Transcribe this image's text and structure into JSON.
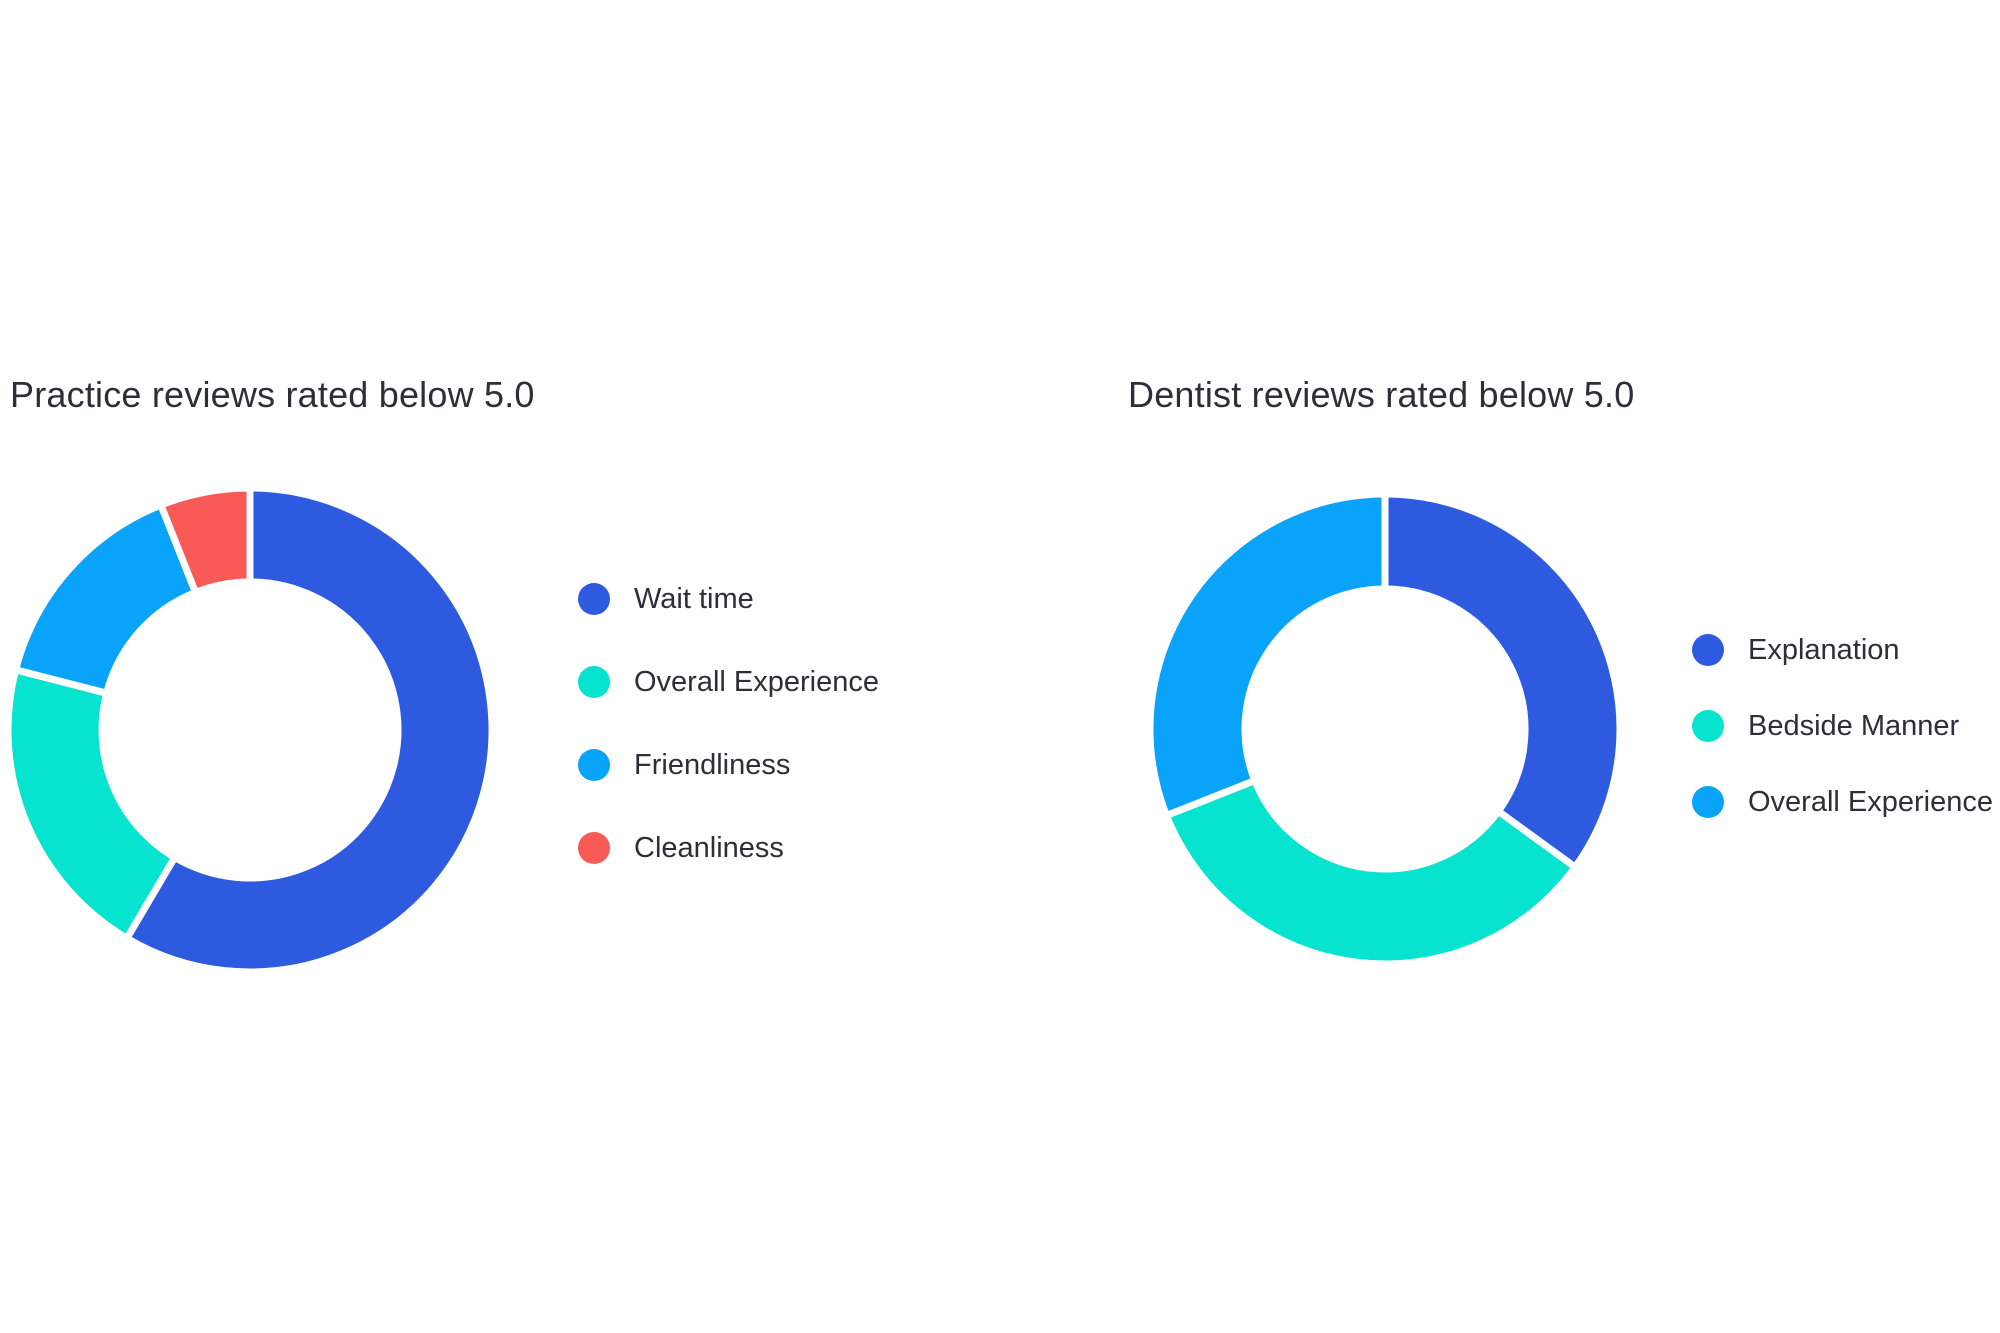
{
  "chart_data": [
    {
      "id": "practice",
      "type": "pie",
      "title": "Practice reviews rated below 5.0",
      "categories": [
        "Wait time",
        "Overall Experience",
        "Friendliness",
        "Cleanliness"
      ],
      "values": [
        58.5,
        20.5,
        15,
        6
      ],
      "colors": [
        "#2e5ae0",
        "#06e3cf",
        "#0aa3fa",
        "#fa5a55"
      ],
      "legend": "right"
    },
    {
      "id": "dentist",
      "type": "pie",
      "title": "Dentist reviews rated below 5.0",
      "categories": [
        "Explanation",
        "Bedside Manner",
        "Overall Experience"
      ],
      "values": [
        35,
        34,
        31
      ],
      "colors": [
        "#2e5ae0",
        "#06e3cf",
        "#0aa3fa"
      ],
      "legend": "right"
    }
  ]
}
